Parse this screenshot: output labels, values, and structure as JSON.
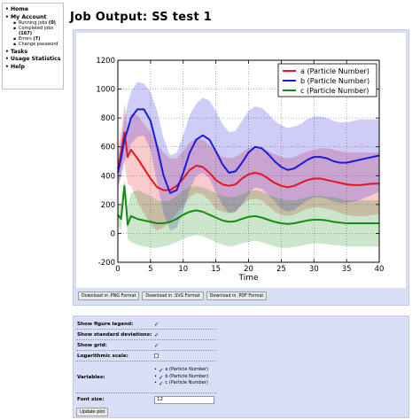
{
  "sidebar": {
    "home": "Home",
    "account": "My Account",
    "sub": [
      {
        "label": "Running jobs",
        "count": "(0)"
      },
      {
        "label": "Completed jobs",
        "count": "(167)"
      },
      {
        "label": "Errors",
        "count": "(7)"
      },
      {
        "label": "Change password",
        "count": ""
      }
    ],
    "tasks": "Tasks",
    "usage": "Usage Statistics",
    "help": "Help"
  },
  "page_title": "Job Output: SS test 1",
  "downloads": {
    "png": "Download in .PNG Format",
    "svg": "Download in .SVG Format",
    "pdf": "Download in .PDF Format"
  },
  "options": {
    "legend_label": "Show figure legend:",
    "std_label": "Show standard deviations:",
    "grid_label": "Show grid:",
    "log_label": "Logarithmic scale:",
    "variables_label": "Variables:",
    "font_label": "Font size:",
    "font_value": "12",
    "update_label": "Update plot",
    "check_mark": "✓",
    "legend_checked": true,
    "std_checked": true,
    "grid_checked": true,
    "log_checked": false,
    "variables": [
      {
        "label": "a (Particle Number)",
        "checked": true
      },
      {
        "label": "b (Particle Number)",
        "checked": true
      },
      {
        "label": "c (Particle Number)",
        "checked": true
      }
    ]
  },
  "chart_data": {
    "type": "line",
    "title": "",
    "xlabel": "Time",
    "ylabel": "",
    "xlim": [
      0,
      40
    ],
    "ylim": [
      -200,
      1200
    ],
    "xticks": [
      0,
      5,
      10,
      15,
      20,
      25,
      30,
      35,
      40
    ],
    "yticks": [
      -200,
      0,
      200,
      400,
      600,
      800,
      1000,
      1200
    ],
    "grid": true,
    "legend_position": "top-right",
    "x": [
      0,
      0.5,
      1,
      1.5,
      2,
      3,
      4,
      5,
      6,
      7,
      8,
      9,
      10,
      11,
      12,
      13,
      14,
      15,
      16,
      17,
      18,
      19,
      20,
      21,
      22,
      23,
      24,
      25,
      26,
      27,
      28,
      29,
      30,
      31,
      32,
      33,
      34,
      35,
      36,
      37,
      38,
      39,
      40
    ],
    "series": [
      {
        "name": "a (Particle Number)",
        "color": "#e8141c",
        "mean": [
          450,
          560,
          700,
          530,
          580,
          520,
          450,
          380,
          320,
          300,
          300,
          330,
          380,
          440,
          470,
          460,
          420,
          370,
          340,
          330,
          340,
          380,
          410,
          420,
          410,
          380,
          350,
          330,
          320,
          330,
          350,
          370,
          380,
          380,
          370,
          360,
          350,
          340,
          335,
          335,
          340,
          345,
          345
        ],
        "upper": [
          600,
          700,
          900,
          720,
          830,
          820,
          760,
          700,
          620,
          560,
          520,
          520,
          570,
          630,
          660,
          650,
          610,
          570,
          530,
          520,
          530,
          560,
          590,
          600,
          590,
          570,
          550,
          530,
          520,
          530,
          550,
          570,
          580,
          590,
          590,
          580,
          570,
          560,
          560,
          560,
          560,
          560,
          560
        ],
        "lower": [
          300,
          420,
          500,
          340,
          330,
          220,
          140,
          60,
          20,
          40,
          80,
          140,
          190,
          250,
          280,
          270,
          230,
          170,
          150,
          140,
          150,
          200,
          230,
          240,
          230,
          190,
          150,
          130,
          120,
          130,
          150,
          170,
          180,
          180,
          170,
          160,
          140,
          130,
          120,
          120,
          120,
          130,
          130
        ]
      },
      {
        "name": "b (Particle Number)",
        "color": "#1a1adc",
        "mean": [
          420,
          520,
          650,
          720,
          800,
          860,
          860,
          780,
          600,
          400,
          280,
          300,
          420,
          560,
          650,
          680,
          650,
          570,
          480,
          420,
          430,
          490,
          560,
          600,
          590,
          550,
          500,
          460,
          440,
          450,
          480,
          510,
          530,
          530,
          520,
          500,
          490,
          490,
          500,
          510,
          520,
          530,
          540
        ],
        "upper": [
          520,
          650,
          800,
          900,
          980,
          1050,
          1040,
          980,
          850,
          660,
          540,
          560,
          680,
          820,
          900,
          940,
          920,
          850,
          760,
          700,
          710,
          780,
          850,
          880,
          870,
          830,
          780,
          750,
          730,
          740,
          760,
          790,
          810,
          810,
          800,
          780,
          770,
          770,
          780,
          790,
          790,
          790,
          790
        ],
        "lower": [
          320,
          390,
          500,
          540,
          620,
          670,
          680,
          580,
          350,
          140,
          20,
          40,
          160,
          300,
          400,
          420,
          380,
          290,
          200,
          140,
          150,
          200,
          270,
          320,
          310,
          270,
          220,
          170,
          150,
          160,
          200,
          230,
          250,
          250,
          240,
          220,
          210,
          210,
          220,
          230,
          250,
          270,
          290
        ]
      },
      {
        "name": "c (Particle Number)",
        "color": "#148c14",
        "mean": [
          130,
          100,
          330,
          60,
          120,
          100,
          90,
          80,
          70,
          70,
          80,
          100,
          130,
          150,
          160,
          150,
          130,
          110,
          90,
          80,
          85,
          100,
          115,
          120,
          110,
          95,
          80,
          70,
          65,
          70,
          80,
          90,
          95,
          95,
          90,
          80,
          75,
          70,
          70,
          70,
          70,
          70,
          70
        ],
        "upper": [
          200,
          200,
          380,
          180,
          280,
          300,
          280,
          260,
          230,
          220,
          230,
          260,
          300,
          320,
          330,
          320,
          300,
          280,
          260,
          250,
          255,
          270,
          290,
          300,
          290,
          270,
          250,
          240,
          230,
          230,
          240,
          250,
          260,
          260,
          255,
          250,
          240,
          230,
          230,
          230,
          230,
          230,
          230
        ],
        "lower": [
          60,
          20,
          280,
          -40,
          -60,
          -80,
          -90,
          -100,
          -100,
          -90,
          -80,
          -60,
          -40,
          -20,
          -10,
          -20,
          -40,
          -60,
          -80,
          -90,
          -85,
          -70,
          -60,
          -50,
          -60,
          -75,
          -90,
          -100,
          -100,
          -95,
          -85,
          -75,
          -70,
          -70,
          -75,
          -80,
          -85,
          -90,
          -90,
          -90,
          -90,
          -90,
          -90
        ]
      }
    ]
  }
}
